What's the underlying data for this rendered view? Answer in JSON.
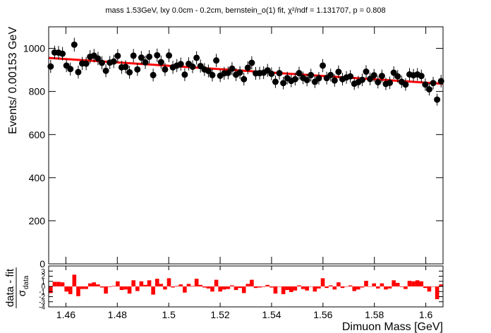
{
  "chart_data": [
    {
      "type": "errorbar",
      "title": "mass 1.53GeV, lxy 0.0cm - 0.2cm, bernstein_o(1) fit, χ²/ndf = 1.131707, p = 0.808",
      "ylabel": "Events/ 0.00153 GeV",
      "x": [
        1.45407,
        1.4556,
        1.45714,
        1.45867,
        1.46021,
        1.46174,
        1.46327,
        1.46481,
        1.46634,
        1.46788,
        1.46941,
        1.47094,
        1.47248,
        1.47401,
        1.47555,
        1.47708,
        1.47861,
        1.48015,
        1.48168,
        1.48322,
        1.48475,
        1.48628,
        1.48782,
        1.48935,
        1.49089,
        1.49242,
        1.49395,
        1.49549,
        1.49702,
        1.49856,
        1.50009,
        1.50162,
        1.50316,
        1.50469,
        1.50623,
        1.50776,
        1.50929,
        1.51083,
        1.51236,
        1.5139,
        1.51543,
        1.51696,
        1.5185,
        1.52003,
        1.52157,
        1.5231,
        1.52463,
        1.52617,
        1.5277,
        1.52924,
        1.53077,
        1.5323,
        1.53384,
        1.53537,
        1.53691,
        1.53844,
        1.53997,
        1.54151,
        1.54304,
        1.54458,
        1.54611,
        1.54764,
        1.54918,
        1.55071,
        1.55225,
        1.55378,
        1.55531,
        1.55685,
        1.55838,
        1.55992,
        1.56145,
        1.56298,
        1.56452,
        1.56605,
        1.56759,
        1.56912,
        1.57065,
        1.57219,
        1.57372,
        1.57526,
        1.57679,
        1.57832,
        1.57986,
        1.58139,
        1.58293,
        1.58446,
        1.58599,
        1.58753,
        1.58906,
        1.5906,
        1.59213,
        1.59366,
        1.5952,
        1.59673,
        1.59827,
        1.5998,
        1.60133,
        1.60287,
        1.6044,
        1.60594
      ],
      "values": [
        916,
        981,
        980,
        975,
        920,
        904,
        1017,
        890,
        930,
        929,
        961,
        966,
        953,
        933,
        896,
        934,
        939,
        965,
        912,
        914,
        889,
        966,
        902,
        957,
        935,
        961,
        876,
        968,
        936,
        902,
        967,
        912,
        920,
        927,
        878,
        928,
        915,
        956,
        918,
        902,
        895,
        876,
        944,
        873,
        884,
        886,
        906,
        878,
        888,
        857,
        910,
        933,
        884,
        885,
        887,
        898,
        882,
        845,
        885,
        839,
        862,
        849,
        857,
        885,
        863,
        853,
        876,
        845,
        861,
        920,
        862,
        876,
        851,
        891,
        857,
        865,
        870,
        836,
        843,
        854,
        892,
        858,
        875,
        843,
        872,
        835,
        840,
        887,
        870,
        845,
        832,
        879,
        875,
        879,
        872,
        832,
        810,
        839,
        762,
        848
      ],
      "errors": [
        30.3,
        31.3,
        31.3,
        31.2,
        30.3,
        30.1,
        31.9,
        29.8,
        30.5,
        30.5,
        31.0,
        31.1,
        30.9,
        30.5,
        29.9,
        30.6,
        30.6,
        31.1,
        30.2,
        30.2,
        29.8,
        31.1,
        30.0,
        30.9,
        30.6,
        31.0,
        29.6,
        31.1,
        30.6,
        30.0,
        31.1,
        30.2,
        30.3,
        30.4,
        29.6,
        30.5,
        30.2,
        30.9,
        30.3,
        30.0,
        29.9,
        29.6,
        30.7,
        29.5,
        29.7,
        29.8,
        30.1,
        29.6,
        29.8,
        29.3,
        30.2,
        30.5,
        29.7,
        29.7,
        29.8,
        30.0,
        29.7,
        29.1,
        29.7,
        29.0,
        29.4,
        29.1,
        29.3,
        29.7,
        29.4,
        29.2,
        29.6,
        29.1,
        29.3,
        30.3,
        29.4,
        29.6,
        29.2,
        29.8,
        29.3,
        29.4,
        29.5,
        28.9,
        29.0,
        29.2,
        29.9,
        29.3,
        29.6,
        29.0,
        29.5,
        28.9,
        29.0,
        29.8,
        29.5,
        29.1,
        28.8,
        29.6,
        29.6,
        29.6,
        29.5,
        28.8,
        28.5,
        29.0,
        27.6,
        29.1
      ],
      "color": "#000000",
      "fit": {
        "x": [
          1.4533,
          1.6067
        ],
        "values": [
          955.6,
          835.6
        ],
        "color": "#ff0000"
      },
      "xlim": [
        1.4533,
        1.6067
      ],
      "ylim": [
        0,
        1100
      ],
      "xticks": [
        1.46,
        1.48,
        1.5,
        1.52,
        1.54,
        1.56,
        1.58,
        1.6
      ],
      "yticks": [
        0,
        200,
        400,
        600,
        800,
        1000
      ]
    },
    {
      "type": "bar",
      "xlabel": "Dimuon Mass [GeV]",
      "ylabel": {
        "numerator": "data - fit",
        "denominator": "σ",
        "subscript": "data"
      },
      "x": [
        1.45407,
        1.4556,
        1.45714,
        1.45867,
        1.46021,
        1.46174,
        1.46327,
        1.46481,
        1.46634,
        1.46788,
        1.46941,
        1.47094,
        1.47248,
        1.47401,
        1.47555,
        1.47708,
        1.47861,
        1.48015,
        1.48168,
        1.48322,
        1.48475,
        1.48628,
        1.48782,
        1.48935,
        1.49089,
        1.49242,
        1.49395,
        1.49549,
        1.49702,
        1.49856,
        1.50009,
        1.50162,
        1.50316,
        1.50469,
        1.50623,
        1.50776,
        1.50929,
        1.51083,
        1.51236,
        1.5139,
        1.51543,
        1.51696,
        1.5185,
        1.52003,
        1.52157,
        1.5231,
        1.52463,
        1.52617,
        1.5277,
        1.52924,
        1.53077,
        1.5323,
        1.53384,
        1.53537,
        1.53691,
        1.53844,
        1.53997,
        1.54151,
        1.54304,
        1.54458,
        1.54611,
        1.54764,
        1.54918,
        1.55071,
        1.55225,
        1.55378,
        1.55531,
        1.55685,
        1.55838,
        1.55992,
        1.56145,
        1.56298,
        1.56452,
        1.56605,
        1.56759,
        1.56912,
        1.57065,
        1.57219,
        1.57372,
        1.57526,
        1.57679,
        1.57832,
        1.57986,
        1.58139,
        1.58293,
        1.58446,
        1.58599,
        1.58753,
        1.58906,
        1.5906,
        1.59213,
        1.59366,
        1.5952,
        1.59673,
        1.59827,
        1.5998,
        1.60133,
        1.60287,
        1.6044,
        1.60594
      ],
      "values": [
        -1.3,
        0.9,
        0.9,
        0.8,
        -1.0,
        -1.5,
        2.3,
        -1.9,
        -0.5,
        -0.5,
        0.6,
        0.8,
        0.4,
        -0.2,
        -1.4,
        -0.1,
        0.1,
        1.0,
        -0.7,
        -0.6,
        -1.4,
        1.2,
        -0.9,
        1.0,
        0.3,
        1.2,
        -1.6,
        1.5,
        0.5,
        -0.6,
        1.6,
        -0.2,
        0.1,
        0.4,
        -1.2,
        0.5,
        0.1,
        1.5,
        0.3,
        -0.2,
        -0.4,
        -1.0,
        1.3,
        -1.0,
        -0.6,
        -0.5,
        0.2,
        -0.7,
        -0.3,
        -1.3,
        0.5,
        1.3,
        -0.3,
        -0.2,
        -0.1,
        0.3,
        -0.2,
        -1.4,
        0.0,
        -1.5,
        -0.7,
        -1.1,
        -0.8,
        0.2,
        -0.5,
        -0.8,
        0.0,
        -1.0,
        -0.4,
        1.6,
        -0.3,
        0.2,
        -0.6,
        0.8,
        -0.3,
        0.0,
        0.2,
        -0.9,
        -0.6,
        -0.2,
        1.1,
        0.0,
        0.6,
        -0.4,
        0.6,
        -0.6,
        -0.4,
        1.2,
        0.7,
        -0.1,
        -0.5,
        1.1,
        1.0,
        1.2,
        1.0,
        -0.3,
        -1.0,
        0.0,
        -2.5,
        0.4
      ],
      "color": "#ff0000",
      "xlim": [
        1.4533,
        1.6067
      ],
      "ylim": [
        -4,
        4
      ],
      "xticks": [
        1.46,
        1.48,
        1.5,
        1.52,
        1.54,
        1.56,
        1.58,
        1.6
      ],
      "yticks": [
        -4,
        -3,
        -2,
        -1,
        0,
        1,
        2,
        3
      ]
    }
  ]
}
